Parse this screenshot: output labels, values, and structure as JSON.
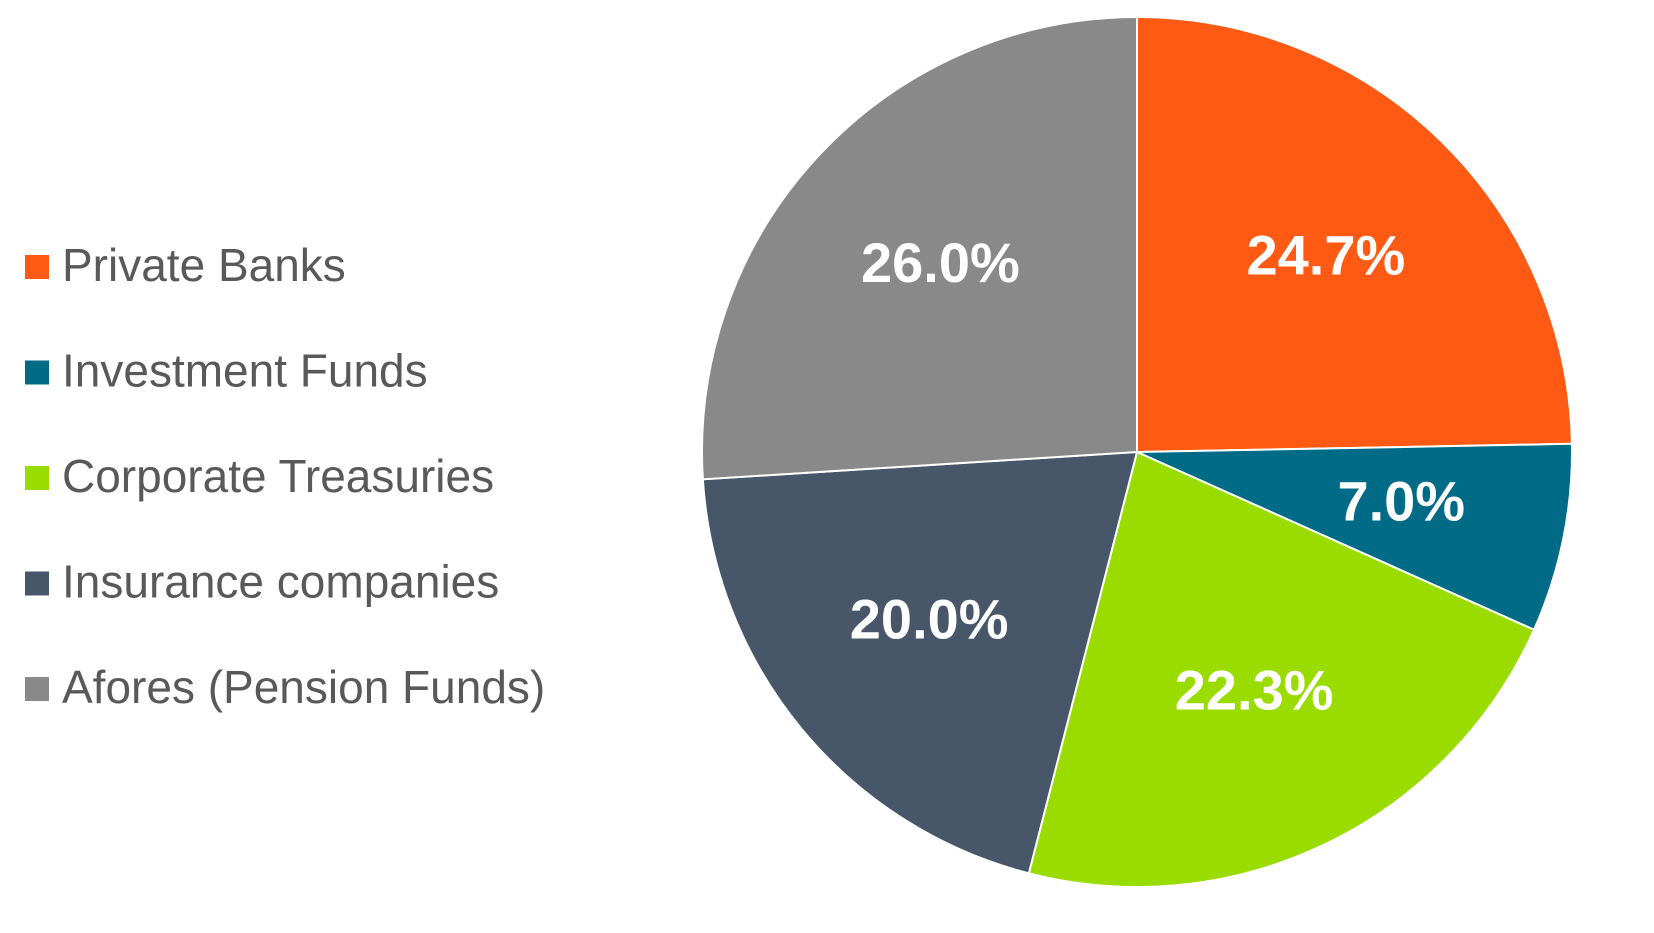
{
  "chart_data": {
    "type": "pie",
    "categories": [
      "Private Banks",
      "Investment Funds",
      "Corporate Treasuries",
      "Insurance companies",
      "Afores (Pension Funds)"
    ],
    "values": [
      24.7,
      7.0,
      22.3,
      20.0,
      26.0
    ],
    "value_labels": [
      "24.7%",
      "7.0%",
      "22.3%",
      "20.0%",
      "26.0%"
    ],
    "colors": [
      "#ff5a14",
      "#006b87",
      "#9bdc00",
      "#475668",
      "#898989"
    ],
    "legend": "left"
  }
}
